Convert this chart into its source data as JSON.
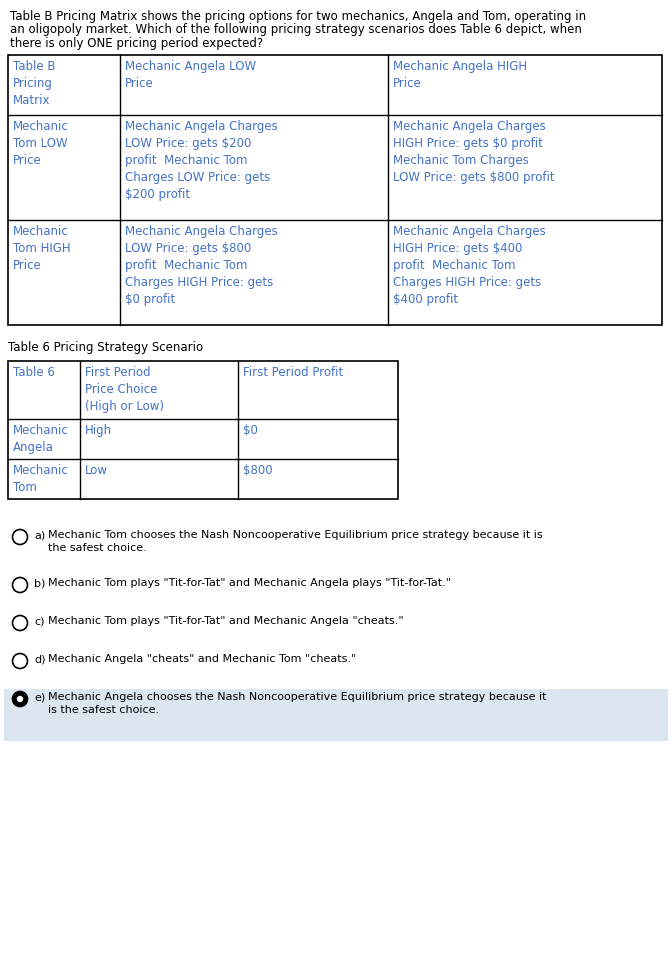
{
  "text_color": "#4472c4",
  "black": "#000000",
  "bg_color": "#ffffff",
  "light_blue_bg": "#dce6f1",
  "intro_text_parts": [
    {
      "text": "Table B Pricing Matrix",
      "bold": true
    },
    {
      "text": " shows the pricing options for two mechanics, Angela and Tom, operating in\nan oligopoly market. Which of the following pricing strategy scenarios does ",
      "bold": false
    },
    {
      "text": "Table 6",
      "bold": true
    },
    {
      "text": " depict, when\nthere is only ",
      "bold": false
    },
    {
      "text": "ONE",
      "bold": true
    },
    {
      "text": " pricing period expected?",
      "bold": false
    }
  ],
  "table_b": {
    "col0_header": "Table B\nPricing\nMatrix",
    "col1_header": "Mechanic Angela LOW\nPrice",
    "col2_header": "Mechanic Angela HIGH\nPrice",
    "row1_col0": "Mechanic\nTom LOW\nPrice",
    "row1_col1": "Mechanic Angela Charges\nLOW Price: gets $200\nprofit  Mechanic Tom\nCharges LOW Price: gets\n$200 profit",
    "row1_col2": "Mechanic Angela Charges\nHIGH Price: gets $0 profit\nMechanic Tom Charges\nLOW Price: gets $800 profit",
    "row2_col0": "Mechanic\nTom HIGH\nPrice",
    "row2_col1": "Mechanic Angela Charges\nLOW Price: gets $800\nprofit  Mechanic Tom\nCharges HIGH Price: gets\n$0 profit",
    "row2_col2": "Mechanic Angela Charges\nHIGH Price: gets $400\nprofit  Mechanic Tom\nCharges HIGH Price: gets\n$400 profit"
  },
  "table6_label": "Table 6 Pricing Strategy Scenario",
  "table6": {
    "col0_header": "Table 6",
    "col1_header": "First Period\nPrice Choice\n(High or Low)",
    "col2_header": "First Period Profit",
    "row1_col0": "Mechanic\nAngela",
    "row1_col1": "High",
    "row1_col2": "$0",
    "row2_col0": "Mechanic\nTom",
    "row2_col1": "Low",
    "row2_col2": "$800"
  },
  "choices": [
    {
      "label": "a)",
      "text": "Mechanic Tom chooses the Nash Noncooperative Equilibrium price strategy because it is\nthe safest choice.",
      "selected": false,
      "two_lines": true
    },
    {
      "label": "b)",
      "text": "Mechanic Tom plays \"Tit-for-Tat\" and Mechanic Angela plays \"Tit-for-Tat.\"",
      "selected": false,
      "two_lines": false
    },
    {
      "label": "c)",
      "text": "Mechanic Tom plays \"Tit-for-Tat\" and Mechanic Angela \"cheats.\"",
      "selected": false,
      "two_lines": false
    },
    {
      "label": "d)",
      "text": "Mechanic Angela \"cheats\" and Mechanic Tom \"cheats.\"",
      "selected": false,
      "two_lines": false
    },
    {
      "label": "e)",
      "text": "Mechanic Angela chooses the Nash Noncooperative Equilibrium price strategy because it\nis the safest choice.",
      "selected": true,
      "two_lines": true
    }
  ],
  "fig_width": 6.72,
  "fig_height": 9.77,
  "dpi": 100
}
